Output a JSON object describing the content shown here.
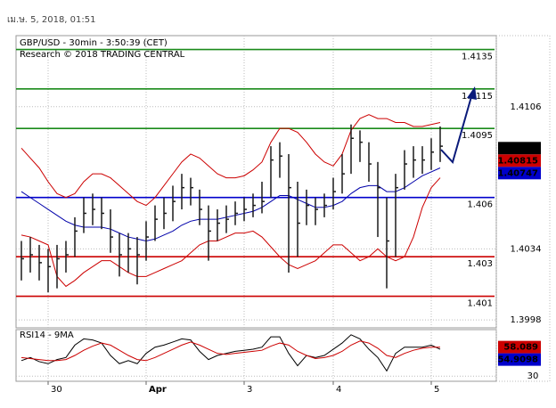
{
  "chart_data": {
    "type": "ohlc",
    "timestamp": "เม.ษ. 5, 2018, 01:51",
    "title": "GBP/USD - 30min - 3:50:39 (CET)",
    "subtitle": "Research © 2018 TRADING CENTRAL",
    "rsi_title": "RSI14 - 9MA",
    "categories": [
      null,
      null,
      null,
      "30",
      null,
      null,
      null,
      null,
      null,
      null,
      null,
      null,
      null,
      null,
      "Apr",
      null,
      null,
      null,
      null,
      null,
      null,
      null,
      null,
      null,
      null,
      "3",
      null,
      null,
      null,
      null,
      null,
      null,
      null,
      null,
      null,
      "4",
      null,
      null,
      null,
      null,
      null,
      null,
      null,
      null,
      null,
      null,
      "5",
      null
    ],
    "high": [
      1.4038,
      1.404,
      1.4036,
      1.4034,
      1.4036,
      1.4038,
      1.405,
      1.406,
      1.4062,
      1.406,
      1.4054,
      1.4042,
      1.4042,
      1.404,
      1.4048,
      1.4056,
      1.406,
      1.4066,
      1.4072,
      1.407,
      1.4064,
      1.4056,
      1.4054,
      1.4056,
      1.4058,
      1.406,
      1.4062,
      1.4068,
      1.4086,
      1.4088,
      1.4082,
      1.4068,
      1.4064,
      1.406,
      1.4062,
      1.407,
      1.4082,
      1.4097,
      1.4094,
      1.4088,
      1.4078,
      1.406,
      1.4072,
      1.4084,
      1.4086,
      1.4086,
      1.409,
      1.4096
    ],
    "low": [
      1.4018,
      1.4022,
      1.4018,
      1.4012,
      1.4014,
      1.4022,
      1.403,
      1.4042,
      1.4046,
      1.4044,
      1.4032,
      1.402,
      1.4022,
      1.4016,
      1.4028,
      1.4038,
      1.4044,
      1.4048,
      1.4054,
      1.4056,
      1.4046,
      1.4028,
      1.4038,
      1.4042,
      1.4046,
      1.4048,
      1.405,
      1.4052,
      1.406,
      1.407,
      1.4022,
      1.403,
      1.4046,
      1.4046,
      1.405,
      1.4054,
      1.4062,
      1.4072,
      1.4078,
      1.4068,
      1.404,
      1.4014,
      1.403,
      1.4064,
      1.407,
      1.4072,
      1.4074,
      1.4078
    ],
    "close": [
      1.4029,
      1.4031,
      1.4027,
      1.4025,
      1.4029,
      1.4031,
      1.4043,
      1.4052,
      1.4054,
      1.4052,
      1.404,
      1.4031,
      1.4034,
      1.4031,
      1.404,
      1.4049,
      1.4052,
      1.4058,
      1.4065,
      1.4065,
      1.4054,
      1.4043,
      1.4047,
      1.4049,
      1.4052,
      1.4054,
      1.4056,
      1.4058,
      1.4079,
      1.4081,
      1.4065,
      1.4047,
      1.4056,
      1.4054,
      1.4056,
      1.4063,
      1.4072,
      1.409,
      1.4088,
      1.4077,
      1.4065,
      1.4038,
      1.4065,
      1.4077,
      1.4079,
      1.4079,
      1.4083,
      1.4086
    ],
    "bar_color": "#1a1a1a",
    "series": [
      {
        "color": "#0000aa",
        "values": [
          1.4063,
          1.406,
          1.4057,
          1.4054,
          1.4051,
          1.4048,
          1.4046,
          1.4045,
          1.4045,
          1.4045,
          1.4044,
          1.4042,
          1.404,
          1.4039,
          1.4038,
          1.4039,
          1.4041,
          1.4043,
          1.4046,
          1.4048,
          1.4049,
          1.4049,
          1.4049,
          1.405,
          1.4051,
          1.4052,
          1.4053,
          1.4055,
          1.4058,
          1.4061,
          1.4061,
          1.4059,
          1.4057,
          1.4055,
          1.4055,
          1.4056,
          1.4058,
          1.4062,
          1.4065,
          1.4066,
          1.4066,
          1.4063,
          1.4063,
          1.4065,
          1.4068,
          1.4071,
          1.4073,
          1.4075
        ]
      },
      {
        "color": "#cc0000",
        "values": [
          1.4085,
          1.408,
          1.4075,
          1.4068,
          1.4062,
          1.406,
          1.4062,
          1.4068,
          1.4072,
          1.4072,
          1.407,
          1.4066,
          1.4062,
          1.4058,
          1.4056,
          1.406,
          1.4066,
          1.4072,
          1.4078,
          1.4082,
          1.408,
          1.4076,
          1.4072,
          1.407,
          1.407,
          1.4071,
          1.4074,
          1.4078,
          1.4088,
          1.4095,
          1.4095,
          1.4093,
          1.4088,
          1.4082,
          1.4078,
          1.4076,
          1.4082,
          1.4094,
          1.41,
          1.4102,
          1.41,
          1.41,
          1.4098,
          1.4098,
          1.4096,
          1.4096,
          1.4097,
          1.4098
        ]
      },
      {
        "color": "#cc0000",
        "values": [
          1.4041,
          1.404,
          1.4038,
          1.4036,
          1.402,
          1.4015,
          1.4018,
          1.4022,
          1.4025,
          1.4028,
          1.4028,
          1.4025,
          1.4022,
          1.402,
          1.402,
          1.4022,
          1.4024,
          1.4026,
          1.4028,
          1.4032,
          1.4036,
          1.4038,
          1.4038,
          1.404,
          1.4042,
          1.4042,
          1.4043,
          1.404,
          1.4035,
          1.403,
          1.4026,
          1.4024,
          1.4026,
          1.4028,
          1.4032,
          1.4036,
          1.4036,
          1.4032,
          1.4028,
          1.403,
          1.4034,
          1.403,
          1.4028,
          1.403,
          1.404,
          1.4055,
          1.4065,
          1.407
        ]
      }
    ],
    "ylim": [
      1.3994,
      1.4142
    ],
    "yticks": [
      1.4106,
      1.4034,
      1.3998
    ],
    "grid": true,
    "levels": [
      {
        "value": 1.4135,
        "color": "#1a8a1a"
      },
      {
        "value": 1.4115,
        "color": "#1a8a1a"
      },
      {
        "value": 1.4095,
        "color": "#1a8a1a"
      },
      {
        "value": 1.406,
        "color": "#0000cc"
      },
      {
        "value": 1.403,
        "color": "#cc0000"
      },
      {
        "value": 1.401,
        "color": "#cc0000"
      }
    ],
    "markers": [
      {
        "value": 1.4085,
        "color": "#000000"
      },
      {
        "value": 1.40815,
        "color": "#cc0000"
      },
      {
        "value": 1.40747,
        "color": "#0000cc"
      }
    ],
    "rsi": {
      "ylim": [
        25,
        75
      ],
      "yticks": [
        30
      ],
      "series": [
        {
          "color": "#000000",
          "values": [
            45,
            48,
            44,
            42,
            46,
            48,
            60,
            66,
            65,
            62,
            50,
            42,
            45,
            42,
            52,
            58,
            60,
            63,
            66,
            65,
            54,
            46,
            50,
            52,
            54,
            55,
            56,
            58,
            68,
            68,
            52,
            40,
            50,
            48,
            50,
            56,
            62,
            70,
            66,
            56,
            48,
            35,
            52,
            58,
            58,
            58,
            60,
            56
          ]
        },
        {
          "color": "#cc0000",
          "values": [
            48,
            47,
            46,
            45,
            45,
            46,
            50,
            55,
            59,
            62,
            60,
            55,
            50,
            46,
            45,
            48,
            52,
            56,
            60,
            63,
            60,
            56,
            52,
            51,
            52,
            53,
            54,
            55,
            59,
            62,
            60,
            54,
            50,
            47,
            48,
            50,
            54,
            60,
            64,
            62,
            57,
            50,
            48,
            52,
            55,
            57,
            58,
            58
          ]
        }
      ],
      "markers": [
        {
          "value": 58.089,
          "color": "#cc0000"
        },
        {
          "value": 54.9098,
          "color": "#0000cc"
        }
      ]
    }
  }
}
